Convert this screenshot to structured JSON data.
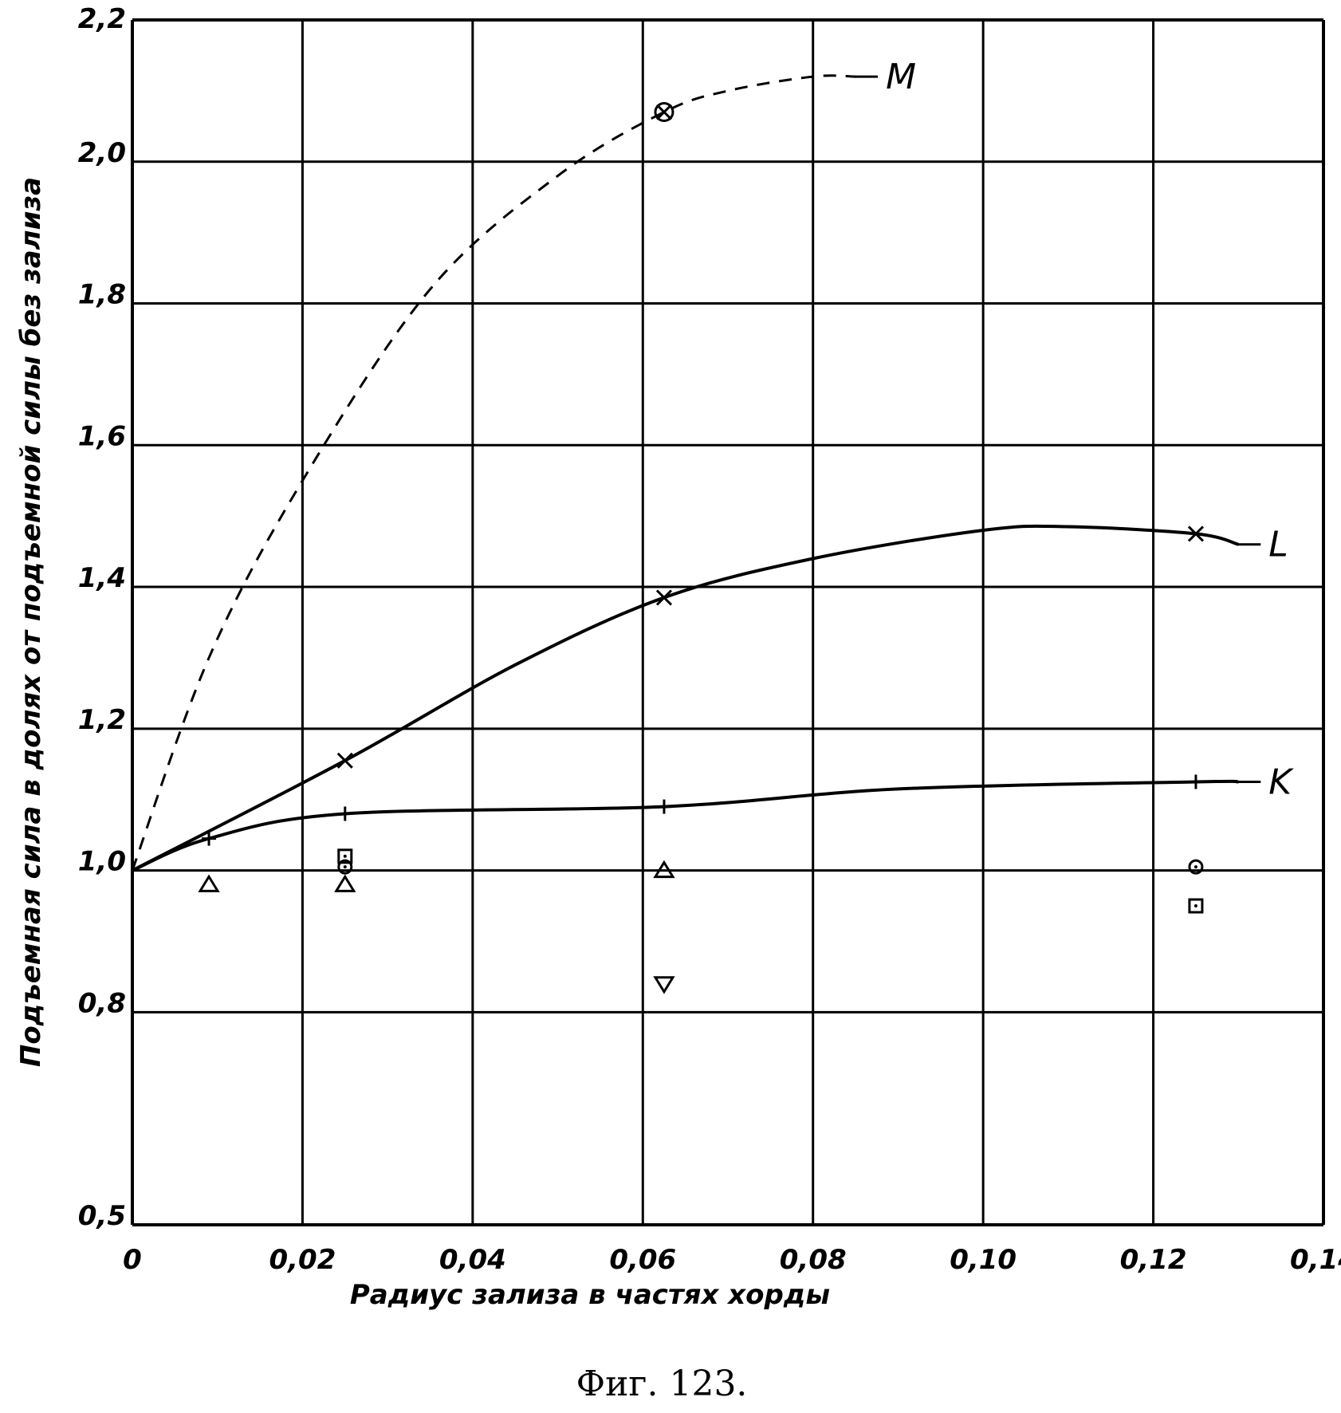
{
  "chart_data": {
    "type": "line",
    "title": "",
    "caption": "Фиг. 123.",
    "xlabel": "Радиус зализа в частях хорды",
    "ylabel": "Подъемная сила в долях от подъемной силы без зализа",
    "xlim": [
      0,
      0.14
    ],
    "ylim": [
      0.5,
      2.2
    ],
    "grid": true,
    "x_ticks": [
      0,
      0.02,
      0.04,
      0.06,
      0.08,
      0.1,
      0.12,
      0.14
    ],
    "x_tick_labels": [
      "0",
      "0,02",
      "0,04",
      "0,06",
      "0,08",
      "0,10",
      "0,12",
      "0,14"
    ],
    "y_ticks": [
      0.5,
      0.8,
      1.0,
      1.2,
      1.4,
      1.6,
      1.8,
      2.0,
      2.2
    ],
    "y_tick_labels": [
      "0,5",
      "0,8",
      "1,0",
      "1,2",
      "1,4",
      "1,6",
      "1,8",
      "2,0",
      "2,2"
    ],
    "series": [
      {
        "name": "M",
        "style": "dashed",
        "marker": "circle-x",
        "curve": [
          [
            0,
            1.0
          ],
          [
            0.009,
            1.3
          ],
          [
            0.02,
            1.55
          ],
          [
            0.035,
            1.82
          ],
          [
            0.05,
            1.98
          ],
          [
            0.0625,
            2.07
          ],
          [
            0.07,
            2.1
          ],
          [
            0.08,
            2.12
          ],
          [
            0.085,
            2.12
          ]
        ],
        "points": [
          [
            0.0625,
            2.07
          ]
        ]
      },
      {
        "name": "L",
        "style": "solid",
        "marker": "x",
        "curve": [
          [
            0,
            1.0
          ],
          [
            0.025,
            1.155
          ],
          [
            0.045,
            1.29
          ],
          [
            0.0625,
            1.385
          ],
          [
            0.08,
            1.44
          ],
          [
            0.1,
            1.48
          ],
          [
            0.11,
            1.485
          ],
          [
            0.125,
            1.475
          ],
          [
            0.13,
            1.46
          ]
        ],
        "points": [
          [
            0.025,
            1.155
          ],
          [
            0.0625,
            1.385
          ],
          [
            0.125,
            1.475
          ]
        ]
      },
      {
        "name": "K",
        "style": "solid",
        "marker": "plus",
        "curve": [
          [
            0,
            1.0
          ],
          [
            0.009,
            1.045
          ],
          [
            0.025,
            1.08
          ],
          [
            0.0625,
            1.09
          ],
          [
            0.09,
            1.115
          ],
          [
            0.125,
            1.125
          ],
          [
            0.13,
            1.125
          ]
        ],
        "points": [
          [
            0.009,
            1.045
          ],
          [
            0.025,
            1.08
          ],
          [
            0.0625,
            1.09
          ],
          [
            0.125,
            1.125
          ]
        ]
      }
    ],
    "scatter": [
      {
        "marker": "triangle",
        "points": [
          [
            0.009,
            0.98
          ],
          [
            0.025,
            0.98
          ],
          [
            0.0625,
            1.0
          ]
        ]
      },
      {
        "marker": "triangle-down",
        "points": [
          [
            0.0625,
            0.84
          ]
        ]
      },
      {
        "marker": "square",
        "points": [
          [
            0.025,
            1.02
          ],
          [
            0.125,
            0.95
          ]
        ]
      },
      {
        "marker": "circle",
        "points": [
          [
            0.025,
            1.005
          ],
          [
            0.125,
            1.005
          ]
        ]
      }
    ]
  }
}
